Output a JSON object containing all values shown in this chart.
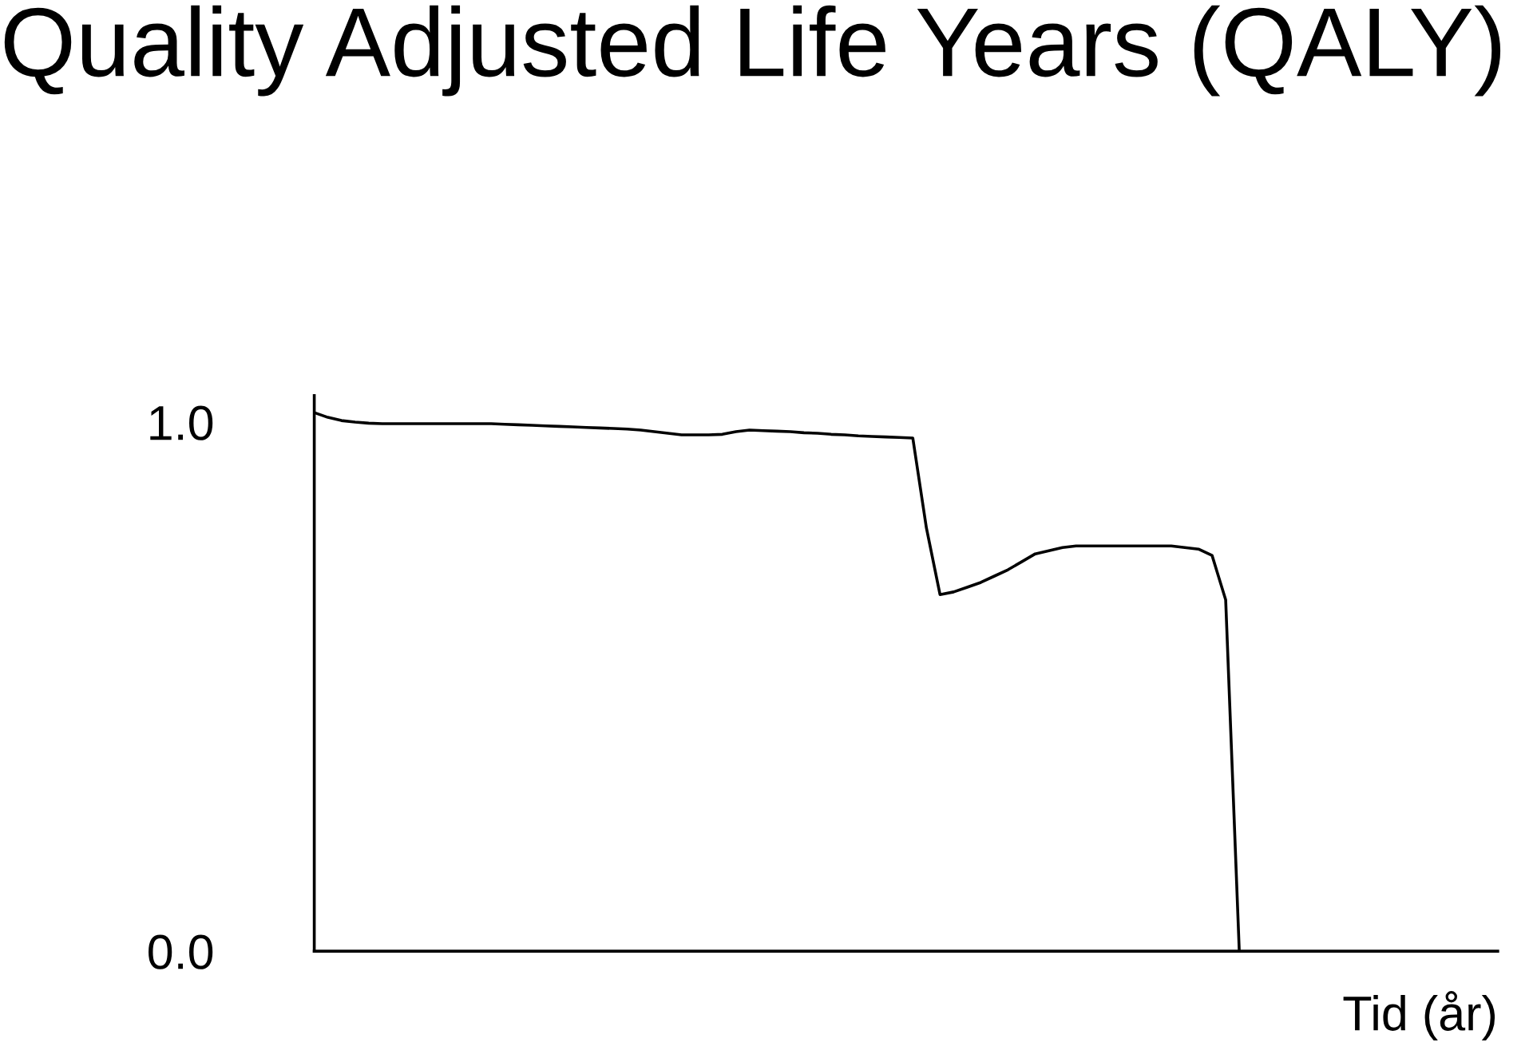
{
  "chart_data": {
    "type": "line",
    "title": "Quality Adjusted Life Years (QALY)",
    "xlabel": "Tid (år)",
    "categories": [
      null,
      null,
      null,
      null,
      null,
      null,
      null,
      null,
      null,
      null,
      null,
      null,
      null,
      null,
      null,
      null,
      null,
      null,
      null,
      null,
      null,
      null,
      null,
      null,
      null,
      null,
      null,
      null,
      null,
      null,
      null,
      null,
      null,
      null,
      null,
      null,
      null,
      null,
      null,
      null,
      null,
      null,
      null,
      null,
      null,
      null,
      null,
      null,
      null,
      null,
      null,
      null,
      null,
      null,
      null,
      null,
      null,
      null,
      null,
      null,
      null,
      null,
      null,
      null,
      null,
      null,
      null,
      null,
      null,
      null,
      null,
      null,
      null,
      null,
      null,
      null,
      null,
      null,
      null,
      null,
      null,
      null,
      null,
      null,
      null,
      null,
      null,
      null
    ],
    "series": [
      {
        "color": "#000000",
        "values": [
          1.018,
          1.009,
          1.003,
          1.0,
          0.998,
          0.997,
          0.997,
          0.997,
          0.997,
          0.997,
          0.997,
          0.997,
          0.997,
          0.997,
          0.996,
          0.995,
          0.994,
          0.993,
          0.992,
          0.991,
          0.99,
          0.989,
          0.988,
          0.987,
          0.985,
          0.982,
          0.979,
          0.976,
          0.976,
          0.976,
          0.977,
          0.982,
          0.985,
          0.984,
          0.983,
          0.982,
          0.98,
          0.979,
          0.977,
          0.976,
          0.974,
          0.973,
          0.972,
          0.971,
          0.97,
          0.8,
          0.674,
          0.679,
          0.688,
          0.697,
          0.709,
          0.721,
          0.736,
          0.751,
          0.757,
          0.763,
          0.766,
          0.766,
          0.766,
          0.766,
          0.766,
          0.766,
          0.766,
          0.766,
          0.763,
          0.76,
          0.748,
          0.664,
          0,
          null,
          null,
          null,
          null,
          null,
          null,
          null,
          null,
          null,
          null,
          null,
          null,
          null,
          null,
          null,
          null,
          null,
          null,
          null
        ]
      }
    ],
    "ylim": [
      0,
      1.05
    ],
    "yticks": [
      {
        "value": 1,
        "label": "1.0"
      },
      {
        "value": 0,
        "label": "0.0"
      }
    ],
    "tick_labels": "y",
    "grid": false,
    "legend": false,
    "marker": "none",
    "line_style": "solid"
  }
}
